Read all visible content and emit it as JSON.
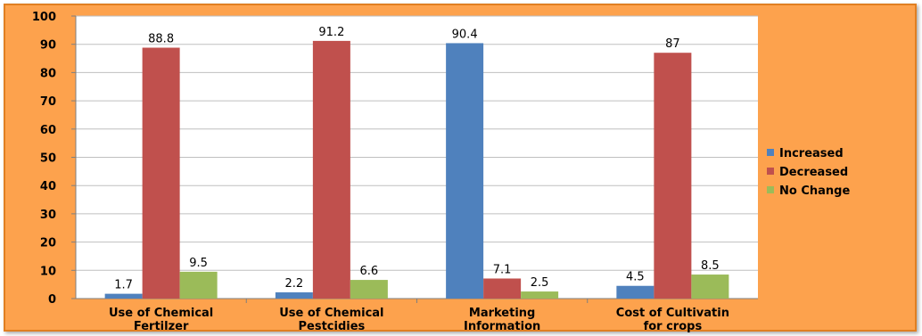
{
  "chart_data": {
    "type": "bar",
    "title": "",
    "xlabel": "",
    "ylabel": "",
    "ylim": [
      0,
      100
    ],
    "yticks": [
      0,
      10,
      20,
      30,
      40,
      50,
      60,
      70,
      80,
      90,
      100
    ],
    "grid": true,
    "legend_position": "right",
    "categories": [
      [
        "Use of Chemical",
        "Fertilzer"
      ],
      [
        "Use of Chemical",
        "Pestcidies"
      ],
      [
        "Marketing",
        "Information"
      ],
      [
        "Cost of Cultivatin",
        "for crops"
      ]
    ],
    "series": [
      {
        "name": "Increased",
        "color": "#4f81bd",
        "values": [
          1.7,
          2.2,
          90.4,
          4.5
        ]
      },
      {
        "name": "Decreased",
        "color": "#c0504d",
        "values": [
          88.8,
          91.2,
          7.1,
          87
        ]
      },
      {
        "name": "No Change",
        "color": "#9bbb59",
        "values": [
          9.5,
          6.6,
          2.5,
          8.5
        ]
      }
    ],
    "colors": {
      "frame_background": "#fda24d",
      "plot_background": "#ffffff",
      "gridline": "#bfbfbf"
    }
  }
}
